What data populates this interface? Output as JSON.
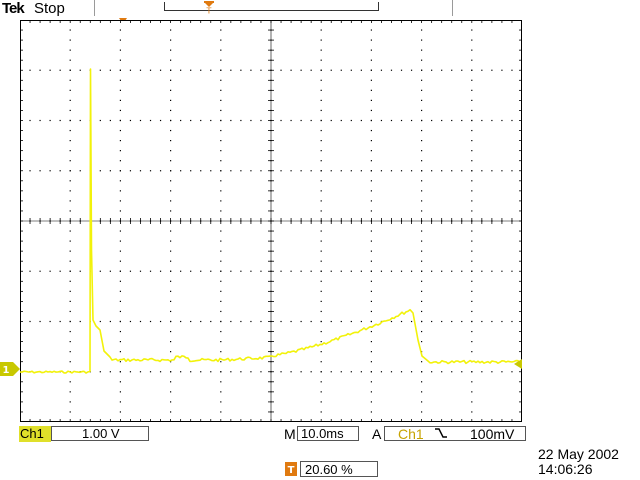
{
  "header": {
    "brand": "Tek",
    "acquisition_state": "Stop"
  },
  "channel": {
    "name": "Ch1",
    "scale": "1.00 V",
    "ground_marker": "1",
    "color": "#f2f20a"
  },
  "timebase": {
    "prefix": "M",
    "value": "10.0ms"
  },
  "trigger": {
    "mode": "A",
    "source": "Ch1",
    "slope": "falling",
    "slope_glyph": "╲",
    "level": "100mV",
    "position_icon": "T",
    "position": "20.60 %",
    "marker_color": "#e07a10"
  },
  "timestamp": {
    "date": "22 May 2002",
    "time": "14:06:26"
  },
  "screen": {
    "grid_color": "#000000",
    "trace_color": "#f2f20a"
  }
}
